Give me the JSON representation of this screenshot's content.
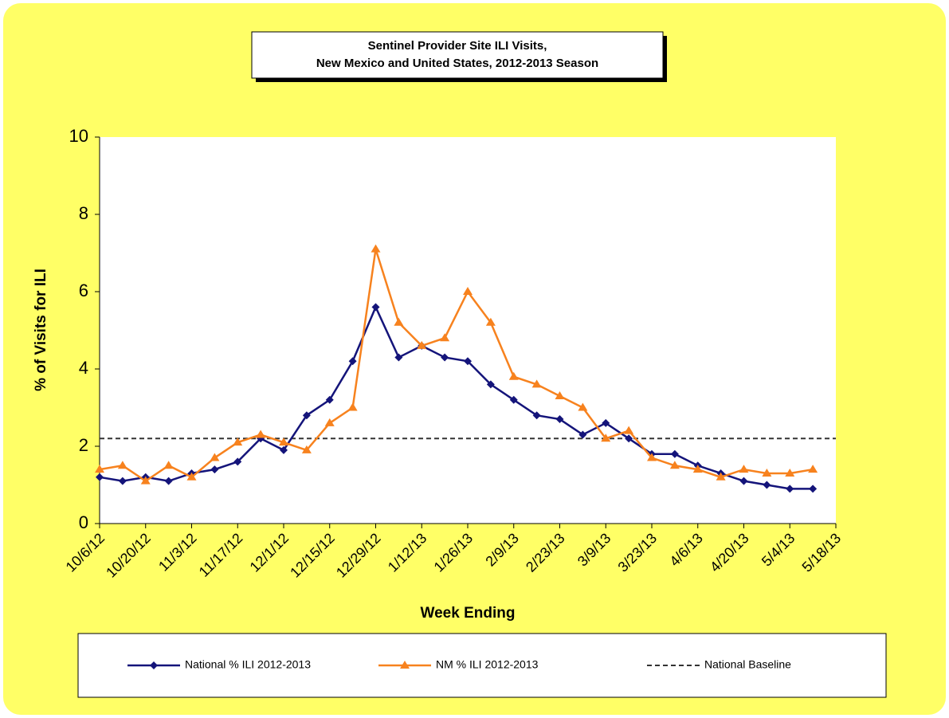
{
  "chart_data": {
    "type": "line",
    "title": [
      "Sentinel Provider Site ILI Visits,",
      "New Mexico and United States,  2012-2013 Season"
    ],
    "x_label": "Week Ending",
    "y_label": "% of Visits for ILI",
    "categories": [
      "10/6/12",
      null,
      "10/20/12",
      null,
      "11/3/12",
      null,
      "11/17/12",
      null,
      "12/1/12",
      null,
      "12/15/12",
      null,
      "12/29/12",
      null,
      "1/12/13",
      null,
      "1/26/13",
      null,
      "2/9/13",
      null,
      "2/23/13",
      null,
      "3/9/13",
      null,
      "3/23/13",
      null,
      "4/6/13",
      null,
      "4/20/13",
      null,
      "5/4/13",
      null,
      "5/18/13"
    ],
    "series": [
      {
        "name": "National % ILI 2012-2013",
        "color": "#14147a",
        "marker": "diamond",
        "values": [
          1.2,
          1.1,
          1.2,
          1.1,
          1.3,
          1.4,
          1.6,
          2.2,
          1.9,
          2.8,
          3.2,
          4.2,
          5.6,
          4.3,
          4.6,
          4.3,
          4.2,
          3.6,
          3.2,
          2.8,
          2.7,
          2.3,
          2.6,
          2.2,
          1.8,
          1.8,
          1.5,
          1.3,
          1.1,
          1.0,
          0.9,
          0.9,
          null
        ]
      },
      {
        "name": "NM % ILI 2012-2013",
        "color": "#f7821e",
        "marker": "triangle",
        "values": [
          1.4,
          1.5,
          1.1,
          1.5,
          1.2,
          1.7,
          2.1,
          2.3,
          2.1,
          1.9,
          2.6,
          3.0,
          7.1,
          5.2,
          4.6,
          4.8,
          6.0,
          5.2,
          3.8,
          3.6,
          3.3,
          3.0,
          2.2,
          2.4,
          1.7,
          1.5,
          1.4,
          1.2,
          1.4,
          1.3,
          1.3,
          1.4,
          null
        ]
      }
    ],
    "baseline": {
      "name": "National Baseline",
      "value": 2.2,
      "color": "#333333"
    },
    "ylim": [
      0,
      10
    ],
    "yticks": [
      0,
      2,
      4,
      6,
      8,
      10
    ]
  }
}
